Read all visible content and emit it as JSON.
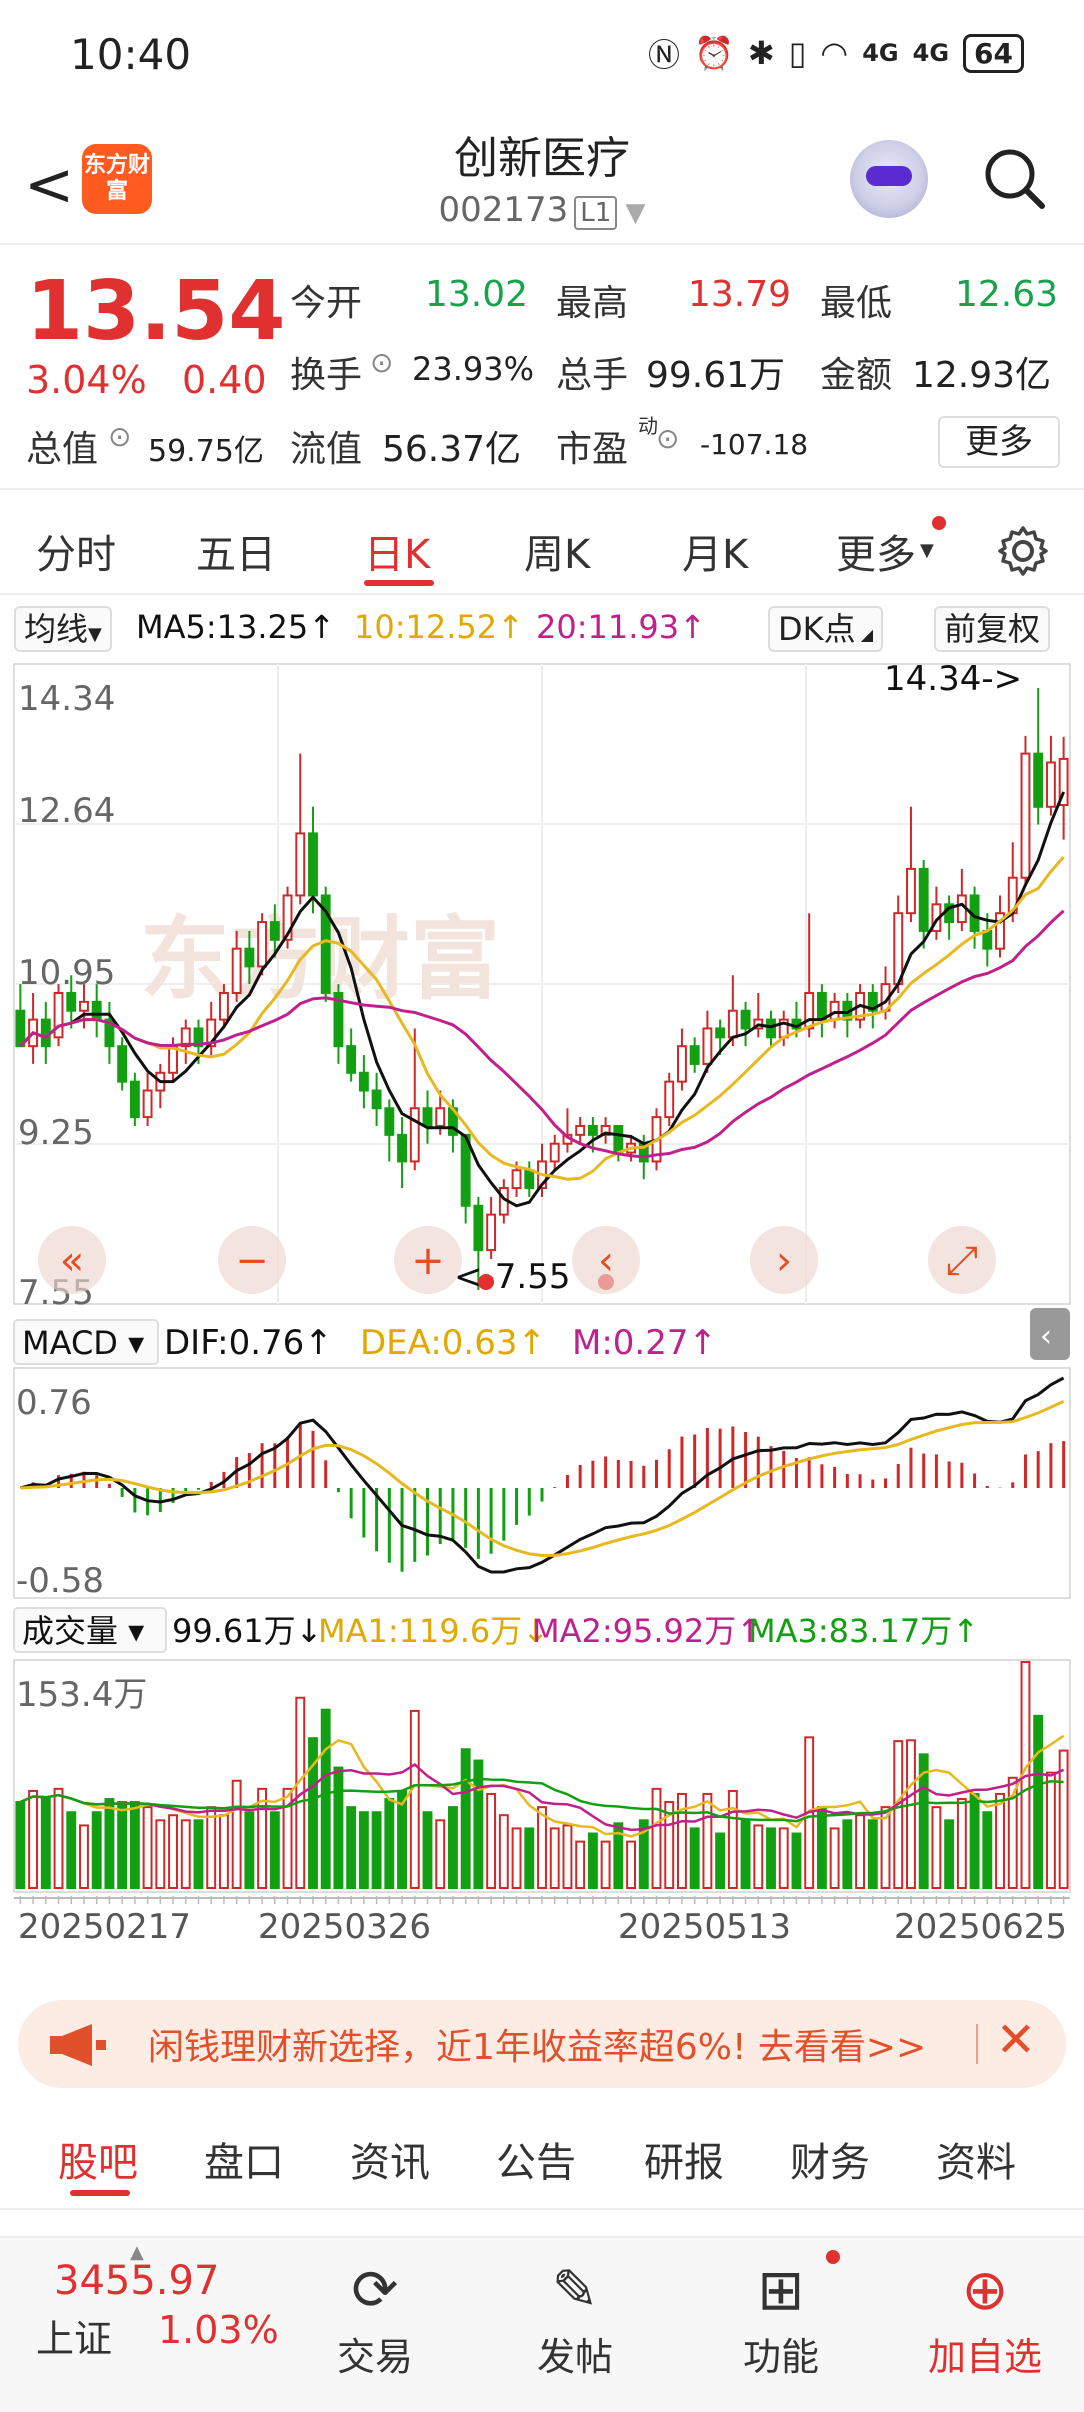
{
  "status": {
    "time": "10:40",
    "battery": "64",
    "net1": "4G",
    "net2": "4G"
  },
  "header": {
    "back": "<",
    "logo_text": "东方财富",
    "title": "创新医疗",
    "code": "002173",
    "level": "L1"
  },
  "quote": {
    "price": "13.54",
    "change_pct": "3.04%",
    "change": "0.40",
    "open_label": "今开",
    "open": "13.02",
    "high_label": "最高",
    "high": "13.79",
    "low_label": "最低",
    "low": "12.63",
    "turnover_label": "换手",
    "turnover": "23.93%",
    "volume_label": "总手",
    "volume": "99.61万",
    "amount_label": "金额",
    "amount": "12.93亿",
    "mktcap_label": "总值",
    "mktcap": "59.75亿",
    "float_label": "流值",
    "float": "56.37亿",
    "pe_label": "市盈",
    "pe_sup": "动",
    "pe": "-107.18",
    "more": "更多"
  },
  "tabs": [
    "分时",
    "五日",
    "日K",
    "周K",
    "月K",
    "更多"
  ],
  "ma_bar": {
    "chip": "均线",
    "ma5": "MA5:13.25↑",
    "ma10": "10:12.52↑",
    "ma20": "20:11.93↑",
    "dk": "DK点",
    "fq": "前复权"
  },
  "colors": {
    "up": "#d02828",
    "down": "#12a012",
    "ma5": "#111111",
    "ma10": "#e8b820",
    "ma20": "#c0208c"
  },
  "chart_data": [
    {
      "type": "candlestick",
      "y_ticks": [
        "14.34",
        "12.64",
        "10.95",
        "9.25",
        "7.55"
      ],
      "ylim": [
        7.55,
        14.34
      ],
      "max_label": "14.34->",
      "min_label": "<-7.55",
      "ohlc": [
        [
          10.7,
          10.3,
          11.0,
          10.4
        ],
        [
          10.3,
          10.6,
          10.9,
          10.1
        ],
        [
          10.6,
          10.3,
          10.8,
          10.1
        ],
        [
          10.4,
          10.9,
          11.0,
          10.3
        ],
        [
          10.9,
          10.7,
          11.1,
          10.5
        ],
        [
          10.7,
          10.8,
          11.0,
          10.5
        ],
        [
          10.8,
          10.6,
          11.0,
          10.4
        ],
        [
          10.6,
          10.3,
          10.8,
          10.1
        ],
        [
          10.3,
          9.9,
          10.4,
          9.8
        ],
        [
          9.9,
          9.5,
          10.0,
          9.4
        ],
        [
          9.5,
          9.8,
          10.0,
          9.4
        ],
        [
          9.8,
          10.0,
          10.1,
          9.6
        ],
        [
          10.0,
          10.3,
          10.4,
          9.9
        ],
        [
          10.3,
          10.5,
          10.6,
          10.1
        ],
        [
          10.5,
          10.3,
          10.6,
          10.1
        ],
        [
          10.3,
          10.6,
          10.8,
          10.2
        ],
        [
          10.6,
          10.9,
          11.0,
          10.5
        ],
        [
          10.9,
          11.4,
          11.6,
          10.8
        ],
        [
          11.4,
          11.2,
          11.6,
          11.0
        ],
        [
          11.2,
          11.7,
          11.8,
          11.1
        ],
        [
          11.7,
          11.5,
          11.9,
          11.3
        ],
        [
          11.5,
          12.0,
          12.1,
          11.4
        ],
        [
          12.0,
          12.7,
          13.6,
          11.9
        ],
        [
          12.7,
          12.0,
          13.0,
          11.8
        ],
        [
          12.0,
          10.9,
          12.1,
          10.8
        ],
        [
          10.9,
          10.3,
          11.0,
          10.1
        ],
        [
          10.3,
          10.0,
          10.5,
          9.9
        ],
        [
          10.0,
          9.8,
          10.2,
          9.6
        ],
        [
          9.8,
          9.6,
          10.0,
          9.4
        ],
        [
          9.6,
          9.3,
          9.7,
          9.0
        ],
        [
          9.3,
          9.0,
          9.5,
          8.7
        ],
        [
          9.0,
          9.6,
          10.5,
          8.9
        ],
        [
          9.6,
          9.4,
          9.8,
          9.2
        ],
        [
          9.4,
          9.6,
          9.8,
          9.3
        ],
        [
          9.6,
          9.3,
          9.7,
          9.1
        ],
        [
          9.3,
          8.5,
          9.3,
          8.3
        ],
        [
          8.5,
          8.0,
          8.6,
          7.55
        ],
        [
          8.0,
          8.4,
          8.6,
          7.9
        ],
        [
          8.4,
          8.7,
          8.8,
          8.3
        ],
        [
          8.7,
          8.9,
          9.0,
          8.6
        ],
        [
          8.9,
          8.7,
          9.0,
          8.6
        ],
        [
          8.7,
          9.0,
          9.2,
          8.6
        ],
        [
          9.0,
          9.2,
          9.3,
          8.9
        ],
        [
          9.2,
          9.3,
          9.6,
          9.1
        ],
        [
          9.3,
          9.4,
          9.5,
          9.2
        ],
        [
          9.4,
          9.3,
          9.5,
          9.1
        ],
        [
          9.3,
          9.4,
          9.5,
          9.2
        ],
        [
          9.4,
          9.1,
          9.4,
          9.0
        ],
        [
          9.1,
          9.2,
          9.3,
          9.0
        ],
        [
          9.2,
          9.0,
          9.3,
          8.8
        ],
        [
          9.0,
          9.5,
          9.6,
          8.9
        ],
        [
          9.5,
          9.9,
          10.0,
          9.4
        ],
        [
          9.9,
          10.3,
          10.5,
          9.8
        ],
        [
          10.3,
          10.1,
          10.4,
          10.0
        ],
        [
          10.1,
          10.5,
          10.7,
          10.0
        ],
        [
          10.5,
          10.4,
          10.6,
          10.2
        ],
        [
          10.4,
          10.7,
          11.1,
          10.3
        ],
        [
          10.7,
          10.5,
          10.8,
          10.3
        ],
        [
          10.5,
          10.6,
          10.9,
          10.4
        ],
        [
          10.6,
          10.4,
          10.7,
          10.3
        ],
        [
          10.4,
          10.6,
          10.7,
          10.3
        ],
        [
          10.6,
          10.5,
          10.8,
          10.4
        ],
        [
          10.5,
          10.9,
          11.8,
          10.4
        ],
        [
          10.9,
          10.6,
          11.0,
          10.4
        ],
        [
          10.6,
          10.8,
          10.9,
          10.5
        ],
        [
          10.8,
          10.6,
          10.9,
          10.4
        ],
        [
          10.6,
          10.9,
          11.0,
          10.5
        ],
        [
          10.9,
          10.7,
          11.0,
          10.5
        ],
        [
          10.7,
          11.0,
          11.2,
          10.6
        ],
        [
          11.0,
          11.8,
          12.0,
          10.9
        ],
        [
          11.8,
          12.3,
          13.0,
          11.7
        ],
        [
          12.3,
          11.6,
          12.4,
          11.4
        ],
        [
          11.6,
          11.9,
          12.1,
          11.5
        ],
        [
          11.9,
          11.7,
          12.0,
          11.5
        ],
        [
          11.7,
          12.0,
          12.3,
          11.6
        ],
        [
          12.0,
          11.6,
          12.1,
          11.4
        ],
        [
          11.6,
          11.4,
          11.8,
          11.2
        ],
        [
          11.4,
          11.8,
          12.0,
          11.3
        ],
        [
          11.8,
          12.2,
          12.6,
          11.7
        ],
        [
          12.2,
          13.6,
          13.8,
          12.1
        ],
        [
          13.6,
          13.0,
          14.34,
          12.8
        ],
        [
          13.0,
          13.5,
          13.8,
          12.9
        ],
        [
          13.02,
          13.54,
          13.79,
          12.63
        ]
      ],
      "dates": [
        "20250217",
        "20250326",
        "20250513",
        "20250625"
      ]
    },
    {
      "type": "macd",
      "dif": "DIF:0.76↑",
      "dea": "DEA:0.63↑",
      "m": "M:0.27↑",
      "y_ticks": [
        "0.76",
        "-0.58"
      ],
      "ylim": [
        -0.58,
        0.76
      ]
    },
    {
      "type": "volume",
      "label": "成交量",
      "vol": "99.61万↓",
      "ma1": "MA1:119.6万↓",
      "ma2": "MA2:95.92万↑",
      "ma3": "MA3:83.17万↑",
      "y_ticks": [
        "153.4万"
      ],
      "ylim": [
        0,
        153.4
      ]
    }
  ],
  "promo": {
    "text": "闲钱理财新选择，近1年收益率超6%! 去看看>>"
  },
  "subtabs": [
    "股吧",
    "盘口",
    "资讯",
    "公告",
    "研报",
    "财务",
    "资料"
  ],
  "bottom": {
    "index_value": "3455.97",
    "index_name": "上证",
    "index_pct": "1.03%",
    "trade": "交易",
    "post": "发帖",
    "func": "功能",
    "add": "加自选"
  }
}
